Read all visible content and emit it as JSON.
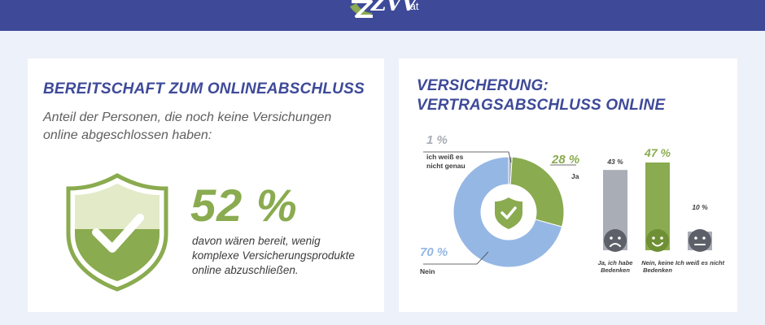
{
  "header": {
    "logo_text": "ZVV",
    "logo_tld": ".at",
    "bg_color": "#3e4a98"
  },
  "left_card": {
    "heading": "Bereitschaft zum Onlineabschluss",
    "subtitle": "Anteil der Personen, die noch keine Versichungen online abgeschlossen haben:",
    "big_value": "52 %",
    "description": "davon wären bereit, wenig komplexe Versicherungsprodukte online abzuschließen.",
    "icon": "shield-check-icon"
  },
  "right_card": {
    "heading_line1": "Versicherung:",
    "heading_line2": "Vertragsabschluss online",
    "center_icon": "shield-check-icon",
    "slice_labels": [
      {
        "pct": "1 %",
        "label": "ich weiß es\nnicht genau"
      },
      {
        "pct": "28 %",
        "label": "Ja"
      },
      {
        "pct": "70 %",
        "label": "Nein"
      }
    ],
    "bar_labels": [
      {
        "pct": "43 %",
        "cat": "Ja, ich habe Bedenken",
        "icon": "sad-face-icon"
      },
      {
        "pct": "47 %",
        "cat": "Nein, keine Bedenken",
        "icon": "smiley-face-icon"
      },
      {
        "pct": "10 %",
        "cat": "Ich weiß es nicht",
        "icon": "neutral-face-icon"
      }
    ]
  },
  "colors": {
    "green": "#8aab4f",
    "blue": "#95b7e4",
    "gray": "#a9adb6",
    "navy": "#3e4a98"
  },
  "chart_data": [
    {
      "type": "pie",
      "title": "Versicherung: Vertragsabschluss online",
      "categories": [
        "ich weiß es nicht genau",
        "Ja",
        "Nein"
      ],
      "values": [
        1,
        28,
        70
      ]
    },
    {
      "type": "bar",
      "categories": [
        "Ja, ich habe Bedenken",
        "Nein, keine Bedenken",
        "Ich weiß es nicht"
      ],
      "values": [
        43,
        47,
        10
      ],
      "ylim": [
        0,
        47
      ]
    }
  ]
}
